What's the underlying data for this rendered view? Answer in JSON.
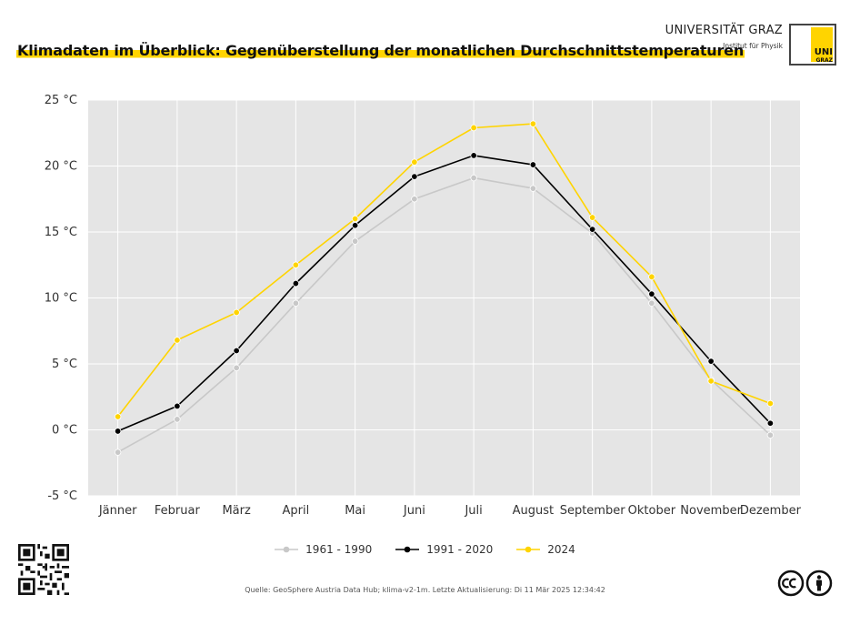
{
  "header": {
    "title": "Klimadaten im Überblick: Gegenüberstellung der monatlichen Durchschnittstemperaturen",
    "university": "UNIVERSITÄT GRAZ",
    "institute": "Institut für Physik",
    "logo_uni": "UNI",
    "logo_graz": "GRAZ"
  },
  "footer": {
    "source": "Quelle: GeoSphere Austria Data Hub; klima-v2-1m. Letzte Aktualisierung: Di 11 Mär 2025 12:34:42"
  },
  "icons": [
    "qr-code-icon",
    "creative-commons-icon",
    "attribution-icon"
  ],
  "colors": {
    "panel": "#e5e5e5",
    "grid": "#ffffff",
    "accent": "#ffd400"
  },
  "chart_data": {
    "type": "line",
    "title": "Klimadaten im Überblick: Gegenüberstellung der monatlichen Durchschnittstemperaturen",
    "xlabel": "",
    "ylabel": "",
    "categories": [
      "Jänner",
      "Februar",
      "März",
      "April",
      "Mai",
      "Juni",
      "Juli",
      "August",
      "September",
      "Oktober",
      "November",
      "Dezember"
    ],
    "ylim": [
      -5,
      25
    ],
    "yticks": [
      -5,
      0,
      5,
      10,
      15,
      20,
      25
    ],
    "ytick_labels": [
      "-5 °C",
      "0 °C",
      "5 °C",
      "10 °C",
      "15 °C",
      "20 °C",
      "25 °C"
    ],
    "grid": true,
    "legend_position": "bottom",
    "series": [
      {
        "name": "1961 - 1990",
        "color": "#c8c8c8",
        "values": [
          -1.7,
          0.8,
          4.7,
          9.6,
          14.3,
          17.5,
          19.1,
          18.3,
          14.9,
          9.6,
          3.8,
          -0.4
        ]
      },
      {
        "name": "1991 - 2020",
        "color": "#000000",
        "values": [
          -0.1,
          1.8,
          6.0,
          11.1,
          15.5,
          19.2,
          20.8,
          20.1,
          15.2,
          10.3,
          5.2,
          0.5
        ]
      },
      {
        "name": "2024",
        "color": "#ffd400",
        "values": [
          1.0,
          6.8,
          8.9,
          12.5,
          16.0,
          20.3,
          22.9,
          23.2,
          16.1,
          11.6,
          3.7,
          2.0
        ]
      }
    ]
  }
}
